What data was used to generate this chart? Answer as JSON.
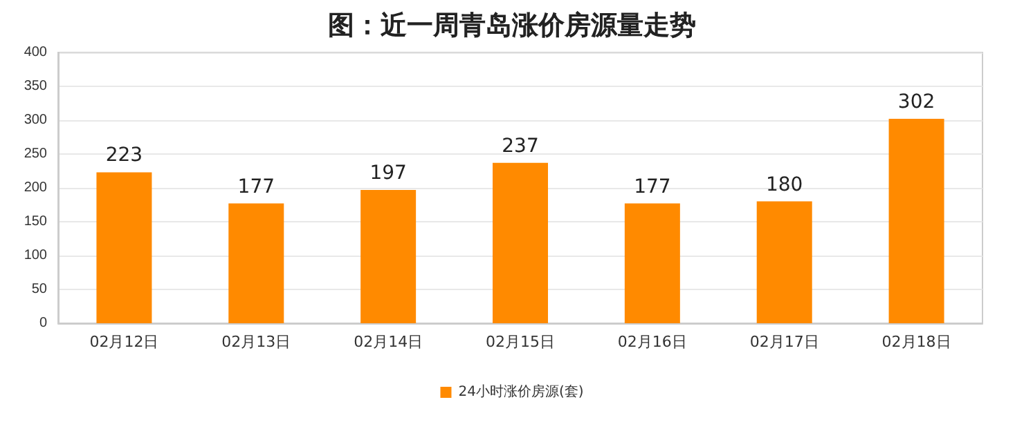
{
  "chart_data": {
    "type": "bar",
    "title": "图：近一周青岛涨价房源量走势",
    "categories": [
      "02月12日",
      "02月13日",
      "02月14日",
      "02月15日",
      "02月16日",
      "02月17日",
      "02月18日"
    ],
    "series": [
      {
        "name": "24小时涨价房源(套)",
        "color": "#ff8a00",
        "values": [
          223,
          177,
          197,
          237,
          177,
          180,
          302
        ]
      }
    ],
    "ylim": [
      0,
      400
    ],
    "yticks": [
      0,
      50,
      100,
      150,
      200,
      250,
      300,
      350,
      400
    ],
    "grid": "y",
    "legend": "bottom",
    "data_labels": true
  }
}
